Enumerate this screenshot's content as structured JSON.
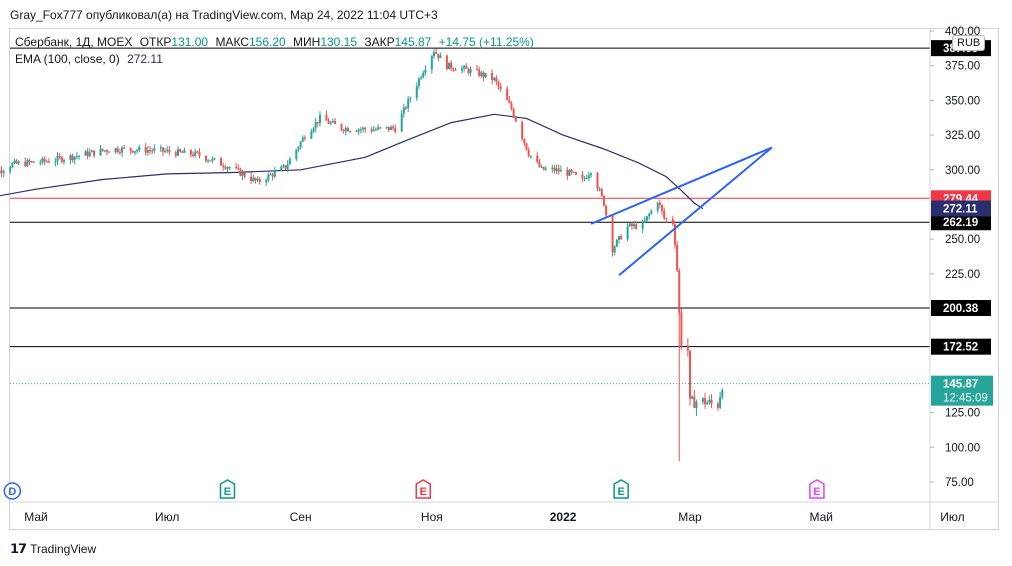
{
  "header": {
    "publish_line": "Gray_Fox777 опубликовал(а) на TradingView.com, Мар 24, 2022 11:04 UTC+3"
  },
  "legend": {
    "symbol": "Сбербанк, 1Д, MOEX",
    "open_label": "ОТКР",
    "open_value": "131.00",
    "high_label": "МАКС",
    "high_value": "156.20",
    "low_label": "МИН",
    "low_value": "130.15",
    "close_label": "ЗАКР",
    "close_value": "145.87",
    "change": "+14.75 (+11.25%)",
    "ema_label": "EMA (100, close, 0)",
    "ema_value": "272.11"
  },
  "currency_button": "RUB",
  "footer": {
    "brand": "TradingView"
  },
  "colors": {
    "up": "#26a69a",
    "down": "#ef5350",
    "ema": "#2a2e6e",
    "trendline": "#2962ff",
    "level": "#000000",
    "red_level": "#f23645",
    "event_earnings": "#089981",
    "event_dividend": "#2962ff",
    "event_red": "#f23645",
    "event_purple": "#e040fb"
  },
  "chart_data": {
    "type": "candlestick",
    "title": "Сбербанк, 1Д, MOEX",
    "ylim": [
      60,
      410
    ],
    "y_ticks": [
      "400.00",
      "375.00",
      "350.00",
      "325.00",
      "300.00",
      "250.00",
      "225.00",
      "125.00",
      "100.00",
      "75.00"
    ],
    "x_ticks": [
      "Май",
      "Июл",
      "Сен",
      "Ноя",
      "2022",
      "Мар",
      "Май",
      "Июл"
    ],
    "levels": [
      {
        "value": 387.65,
        "label": "387.65",
        "kind": "black"
      },
      {
        "value": 279.44,
        "label": "279.44",
        "kind": "red"
      },
      {
        "value": 262.19,
        "label": "262.19",
        "kind": "black"
      },
      {
        "value": 200.38,
        "label": "200.38",
        "kind": "black"
      },
      {
        "value": 172.52,
        "label": "172.52",
        "kind": "black"
      }
    ],
    "ema_badge": "272.11",
    "last_price": {
      "value": 145.87,
      "label": "145.87",
      "timer": "12:45:09"
    },
    "candle_anchors": [
      [
        "2021-04-06",
        293
      ],
      [
        "2021-04-20",
        304
      ],
      [
        "2021-05-05",
        306
      ],
      [
        "2021-05-20",
        310
      ],
      [
        "2021-06-05",
        315
      ],
      [
        "2021-06-25",
        314
      ],
      [
        "2021-07-15",
        311
      ],
      [
        "2021-07-30",
        302
      ],
      [
        "2021-08-12",
        291
      ],
      [
        "2021-08-25",
        302
      ],
      [
        "2021-09-03",
        325
      ],
      [
        "2021-09-10",
        337
      ],
      [
        "2021-09-20",
        330
      ],
      [
        "2021-10-05",
        329
      ],
      [
        "2021-10-15",
        330
      ],
      [
        "2021-10-22",
        352
      ],
      [
        "2021-10-28",
        372
      ],
      [
        "2021-11-02",
        386
      ],
      [
        "2021-11-08",
        375
      ],
      [
        "2021-11-20",
        371
      ],
      [
        "2021-11-30",
        365
      ],
      [
        "2021-12-08",
        344
      ],
      [
        "2021-12-16",
        312
      ],
      [
        "2021-12-22",
        300
      ],
      [
        "2021-12-28",
        300
      ],
      [
        "2022-01-05",
        297
      ],
      [
        "2022-01-10",
        292
      ],
      [
        "2022-01-14",
        300
      ],
      [
        "2022-01-20",
        276
      ],
      [
        "2022-01-24",
        243
      ],
      [
        "2022-01-31",
        259
      ],
      [
        "2022-02-07",
        260
      ],
      [
        "2022-02-14",
        278
      ],
      [
        "2022-02-17",
        265
      ],
      [
        "2022-02-21",
        262
      ],
      [
        "2022-02-22",
        248
      ],
      [
        "2022-02-23",
        228
      ],
      [
        "2022-02-24",
        196
      ],
      [
        "2022-02-25",
        176
      ],
      [
        "2022-02-28",
        170
      ],
      [
        "2022-03-01",
        131
      ],
      [
        "2022-03-03",
        133
      ],
      [
        "2022-03-08",
        133
      ],
      [
        "2022-03-11",
        131
      ],
      [
        "2022-03-14",
        131
      ],
      [
        "2022-03-16",
        145.87
      ]
    ],
    "ema_anchors": [
      [
        "2021-04-06",
        279
      ],
      [
        "2021-05-01",
        286
      ],
      [
        "2021-06-01",
        293
      ],
      [
        "2021-07-01",
        297
      ],
      [
        "2021-08-01",
        298
      ],
      [
        "2021-09-01",
        300
      ],
      [
        "2021-10-01",
        309
      ],
      [
        "2021-10-20",
        321
      ],
      [
        "2021-11-10",
        334
      ],
      [
        "2021-11-30",
        340
      ],
      [
        "2021-12-15",
        337
      ],
      [
        "2022-01-01",
        325
      ],
      [
        "2022-01-20",
        315
      ],
      [
        "2022-02-05",
        305
      ],
      [
        "2022-02-18",
        295
      ],
      [
        "2022-02-25",
        285
      ],
      [
        "2022-03-03",
        276
      ],
      [
        "2022-03-07",
        272
      ]
    ],
    "trendlines": [
      {
        "from": [
          "2022-01-14",
          261
        ],
        "to": [
          "2022-04-08",
          316
        ]
      },
      {
        "from": [
          "2022-01-27",
          224
        ],
        "to": [
          "2022-04-08",
          316
        ]
      }
    ],
    "events": [
      {
        "date": "2021-04-09",
        "letter": "E",
        "kind": "earnings"
      },
      {
        "date": "2021-04-20",
        "letter": "D",
        "kind": "dividend"
      },
      {
        "date": "2021-07-29",
        "letter": "E",
        "kind": "earnings"
      },
      {
        "date": "2021-10-28",
        "letter": "E",
        "kind": "red"
      },
      {
        "date": "2022-01-28",
        "letter": "E",
        "kind": "earnings"
      },
      {
        "date": "2022-04-29",
        "letter": "E",
        "kind": "purple"
      }
    ]
  }
}
